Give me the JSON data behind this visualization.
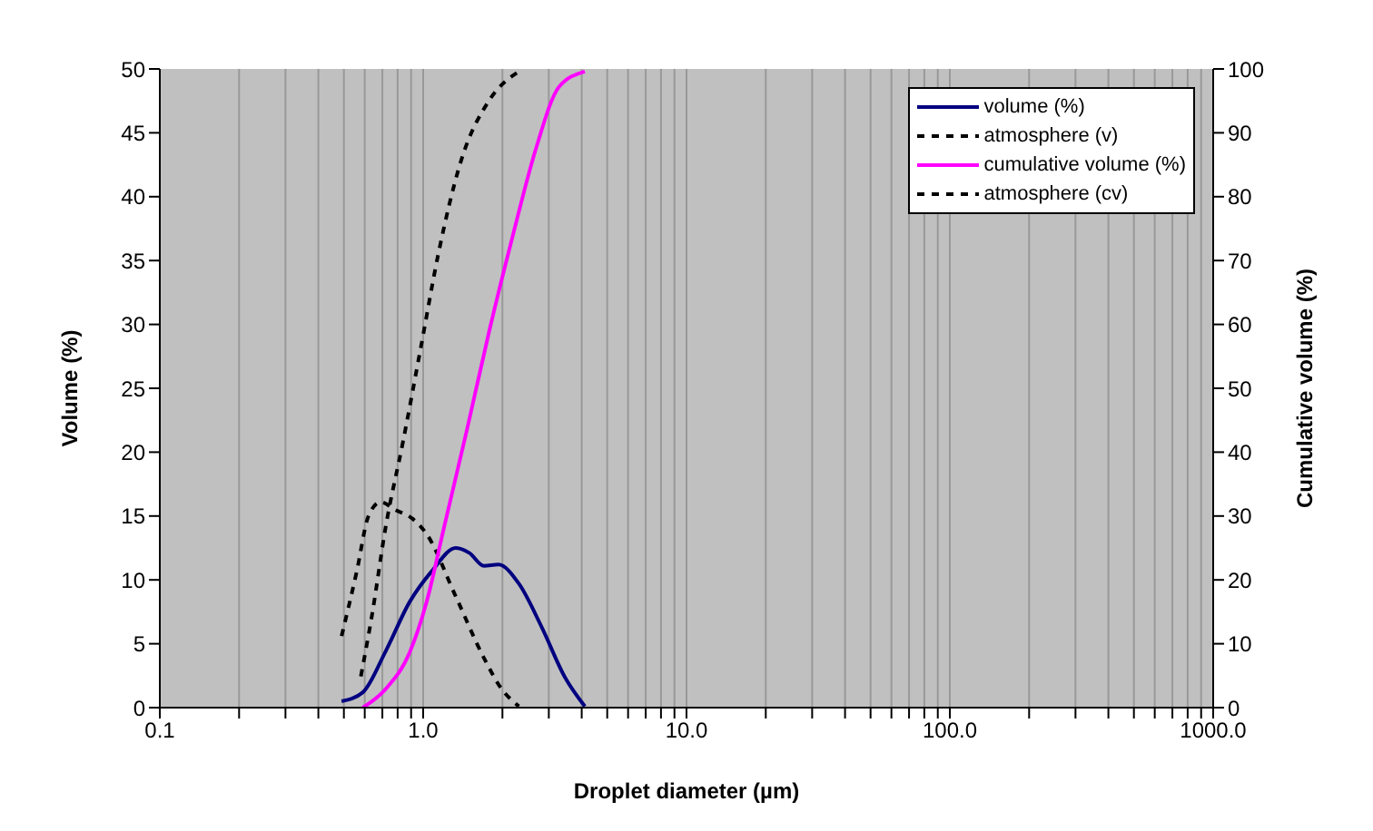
{
  "chart_data": {
    "type": "line",
    "xlabel": "Droplet diameter (µm)",
    "ylabel": "Volume (%)",
    "y2label": "Cumulative volume (%)",
    "log": "x",
    "grid": "x",
    "legend": "top right",
    "marker": "none",
    "xlim": [
      0.1,
      1000
    ],
    "xticks": [
      {
        "value": 0.1,
        "label": "0.1"
      },
      {
        "value": 0.2,
        "label": null
      },
      {
        "value": 0.3,
        "label": null
      },
      {
        "value": 0.4,
        "label": null
      },
      {
        "value": 0.5,
        "label": null
      },
      {
        "value": 0.6,
        "label": null
      },
      {
        "value": 0.7,
        "label": null
      },
      {
        "value": 0.8,
        "label": null
      },
      {
        "value": 0.9,
        "label": null
      },
      {
        "value": 1,
        "label": "1.0"
      },
      {
        "value": 2,
        "label": null
      },
      {
        "value": 3,
        "label": null
      },
      {
        "value": 4,
        "label": null
      },
      {
        "value": 5,
        "label": null
      },
      {
        "value": 6,
        "label": null
      },
      {
        "value": 7,
        "label": null
      },
      {
        "value": 8,
        "label": null
      },
      {
        "value": 9,
        "label": null
      },
      {
        "value": 10,
        "label": "10.0"
      },
      {
        "value": 20,
        "label": null
      },
      {
        "value": 30,
        "label": null
      },
      {
        "value": 40,
        "label": null
      },
      {
        "value": 50,
        "label": null
      },
      {
        "value": 60,
        "label": null
      },
      {
        "value": 70,
        "label": null
      },
      {
        "value": 80,
        "label": null
      },
      {
        "value": 90,
        "label": null
      },
      {
        "value": 100,
        "label": "100.0"
      },
      {
        "value": 200,
        "label": null
      },
      {
        "value": 300,
        "label": null
      },
      {
        "value": 400,
        "label": null
      },
      {
        "value": 500,
        "label": null
      },
      {
        "value": 600,
        "label": null
      },
      {
        "value": 700,
        "label": null
      },
      {
        "value": 800,
        "label": null
      },
      {
        "value": 900,
        "label": null
      },
      {
        "value": 1000,
        "label": "1000.0"
      }
    ],
    "ylim": [
      0,
      50
    ],
    "yticks": [
      0,
      5,
      10,
      15,
      20,
      25,
      30,
      35,
      40,
      45,
      50
    ],
    "y2lim": [
      0,
      100
    ],
    "y2ticks": [
      0,
      10,
      20,
      30,
      40,
      50,
      60,
      70,
      80,
      90,
      100
    ],
    "series": [
      {
        "name": "volume (%)",
        "color": "#000080",
        "line_style": "solid",
        "x": [
          0.49,
          0.59,
          0.72,
          0.89,
          1.08,
          1.33,
          1.5,
          1.7,
          1.93,
          2.31,
          2.82,
          3.45,
          4.11
        ],
        "values": [
          0.5,
          1.2,
          4.4,
          8.3,
          10.7,
          12.5,
          12.1,
          11.1,
          11.2,
          9.7,
          6.3,
          2.4,
          0.1
        ]
      },
      {
        "name": "atmosphere (v)",
        "color": "#000000",
        "line_style": "dashed",
        "x": [
          0.49,
          0.56,
          0.62,
          0.69,
          0.78,
          0.91,
          1.03,
          1.33,
          1.7,
          1.98,
          2.31
        ],
        "values": [
          5.6,
          10.7,
          15,
          16.1,
          15.5,
          14.8,
          13.6,
          8.7,
          3.9,
          1.5,
          0.1
        ]
      },
      {
        "name": "cumulative volume (%)",
        "color": "#ff00ff",
        "line_style": "solid",
        "axis": "y2",
        "x": [
          0.59,
          0.72,
          0.89,
          1.03,
          1.2,
          1.47,
          1.79,
          2.19,
          2.68,
          3.28,
          4.11
        ],
        "values": [
          0,
          2.9,
          8.7,
          16.5,
          28.2,
          43.7,
          59.3,
          73.9,
          87.5,
          97.2,
          99.6
        ]
      },
      {
        "name": "atmosphere (cv)",
        "color": "#000000",
        "line_style": "dashed",
        "axis": "y2",
        "x": [
          0.58,
          0.64,
          0.72,
          0.84,
          0.98,
          1.14,
          1.39,
          1.79,
          2.31
        ],
        "values": [
          4.9,
          14.6,
          28.2,
          41.8,
          56.4,
          70.9,
          85.5,
          95.2,
          99.6
        ]
      }
    ]
  }
}
